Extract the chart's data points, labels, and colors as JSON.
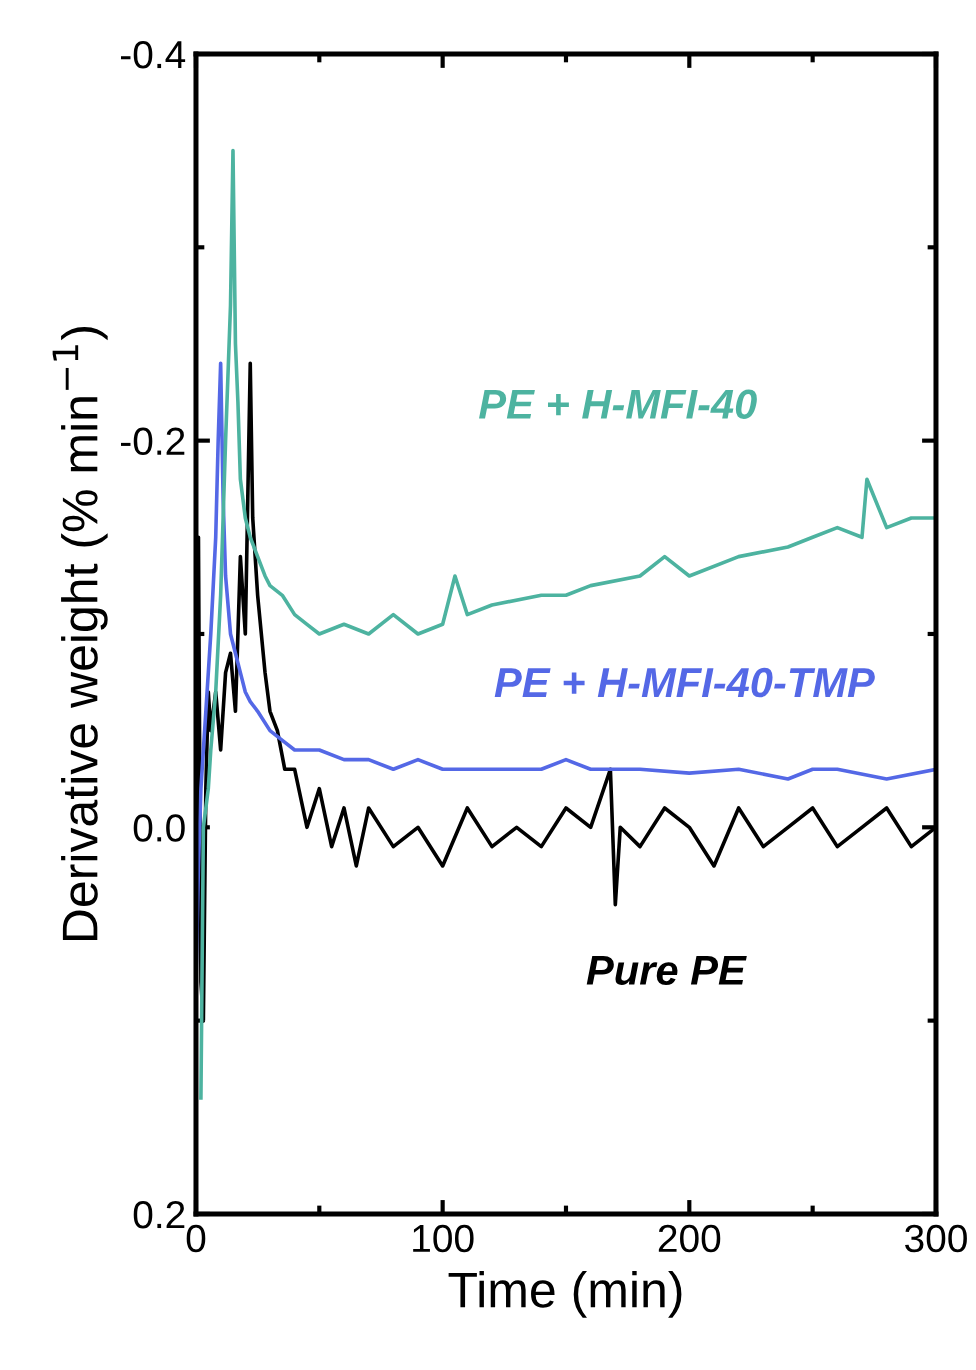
{
  "chart_data": {
    "type": "line",
    "xlabel": "Time (min)",
    "ylabel": "Derivative weight (% min$^{−1}$)",
    "xlim": [
      0,
      300
    ],
    "ylim": [
      0.2,
      -0.4
    ],
    "xticks": [
      0,
      {
        "value": 50,
        "label": null
      },
      100,
      {
        "value": 150,
        "label": null
      },
      200,
      {
        "value": 250,
        "label": null
      },
      300
    ],
    "yticks": [
      {
        "value": -0.4,
        "label": "-0.4"
      },
      {
        "value": -0.3,
        "label": null
      },
      {
        "value": -0.2,
        "label": "-0.2"
      },
      {
        "value": -0.1,
        "label": null
      },
      {
        "value": 0,
        "label": "0.0"
      },
      {
        "value": 0.1,
        "label": null
      },
      {
        "value": 0.2,
        "label": "0.2"
      }
    ],
    "grid": false,
    "legend": false,
    "marker": "none",
    "line_style": "solid",
    "series": [
      {
        "name": "Pure PE",
        "color": "#000000",
        "x": [
          0,
          1,
          2,
          3,
          4,
          5,
          6,
          8,
          10,
          12,
          14,
          16,
          18,
          20,
          22,
          23,
          25,
          28,
          30,
          33,
          36,
          40,
          45,
          50,
          55,
          60,
          65,
          70,
          80,
          90,
          100,
          110,
          120,
          130,
          140,
          150,
          160,
          168,
          170,
          172,
          180,
          190,
          200,
          210,
          220,
          230,
          240,
          250,
          260,
          270,
          280,
          290,
          300
        ],
        "values": [
          0.02,
          -0.15,
          0.08,
          0.1,
          -0.02,
          -0.07,
          -0.05,
          -0.07,
          -0.04,
          -0.08,
          -0.09,
          -0.06,
          -0.14,
          -0.1,
          -0.24,
          -0.16,
          -0.12,
          -0.08,
          -0.06,
          -0.05,
          -0.03,
          -0.03,
          0.0,
          -0.02,
          0.01,
          -0.01,
          0.02,
          -0.01,
          0.01,
          0.0,
          0.02,
          -0.01,
          0.01,
          0.0,
          0.01,
          -0.01,
          0.0,
          -0.03,
          0.04,
          0.0,
          0.01,
          -0.01,
          0.0,
          0.02,
          -0.01,
          0.01,
          0.0,
          -0.01,
          0.01,
          0.0,
          -0.01,
          0.01,
          0.0
        ]
      },
      {
        "name": "PE + H-MFI-40-TMP",
        "color": "#5468e6",
        "x": [
          0,
          1,
          2,
          4,
          6,
          8,
          9,
          10,
          11,
          12,
          14,
          16,
          18,
          20,
          22,
          25,
          30,
          35,
          40,
          50,
          60,
          70,
          80,
          90,
          100,
          120,
          140,
          150,
          160,
          180,
          200,
          220,
          240,
          250,
          260,
          280,
          300
        ],
        "values": [
          0.08,
          0.02,
          -0.02,
          -0.06,
          -0.1,
          -0.15,
          -0.2,
          -0.24,
          -0.17,
          -0.13,
          -0.1,
          -0.09,
          -0.08,
          -0.07,
          -0.065,
          -0.06,
          -0.05,
          -0.045,
          -0.04,
          -0.04,
          -0.035,
          -0.035,
          -0.03,
          -0.035,
          -0.03,
          -0.03,
          -0.03,
          -0.035,
          -0.03,
          -0.03,
          -0.028,
          -0.03,
          -0.025,
          -0.03,
          -0.03,
          -0.025,
          -0.03
        ]
      },
      {
        "name": "PE + H-MFI-40",
        "color": "#4db3a0",
        "x": [
          2,
          3,
          4,
          5,
          6,
          8,
          10,
          12,
          14,
          15,
          16,
          17,
          18,
          20,
          22,
          25,
          28,
          30,
          35,
          40,
          45,
          50,
          60,
          70,
          80,
          90,
          100,
          105,
          110,
          120,
          140,
          150,
          160,
          180,
          190,
          200,
          220,
          240,
          250,
          260,
          270,
          272,
          280,
          290,
          300
        ],
        "values": [
          0.14,
          0.0,
          -0.01,
          -0.02,
          -0.04,
          -0.07,
          -0.12,
          -0.2,
          -0.27,
          -0.35,
          -0.25,
          -0.22,
          -0.18,
          -0.16,
          -0.15,
          -0.14,
          -0.13,
          -0.125,
          -0.12,
          -0.11,
          -0.105,
          -0.1,
          -0.105,
          -0.1,
          -0.11,
          -0.1,
          -0.105,
          -0.13,
          -0.11,
          -0.115,
          -0.12,
          -0.12,
          -0.125,
          -0.13,
          -0.14,
          -0.13,
          -0.14,
          -0.145,
          -0.15,
          -0.155,
          -0.15,
          -0.18,
          -0.155,
          -0.16,
          -0.16
        ]
      }
    ]
  }
}
